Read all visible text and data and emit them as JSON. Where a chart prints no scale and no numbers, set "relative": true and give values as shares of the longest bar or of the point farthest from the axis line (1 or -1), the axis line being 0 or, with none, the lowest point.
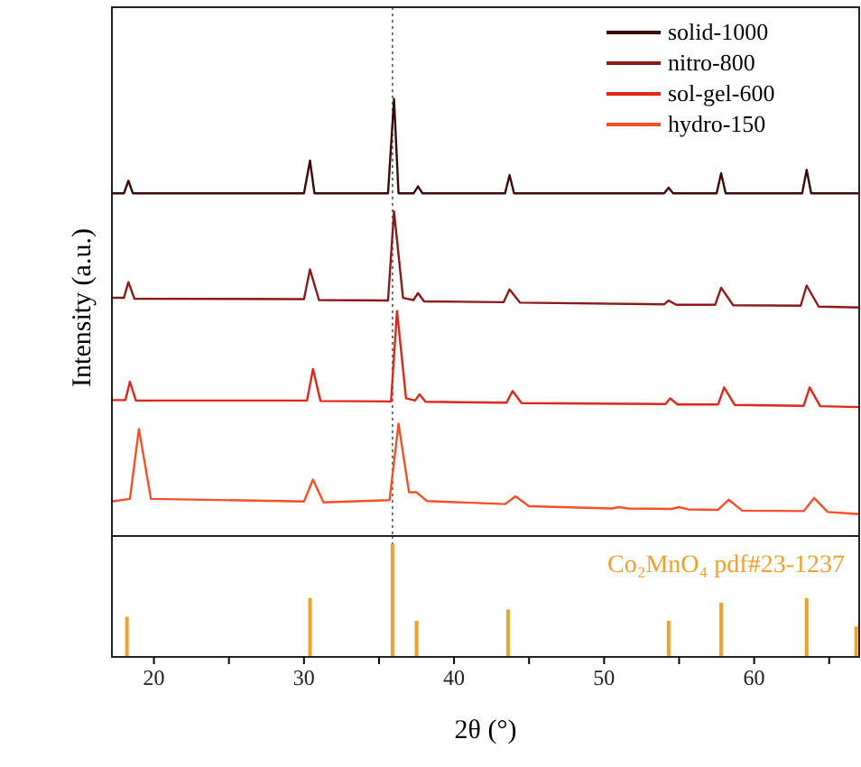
{
  "chart_data": [
    {
      "type": "line",
      "ylabel": "Intensity (a.u.)",
      "relative": true,
      "xlim": [
        17.2,
        67
      ],
      "tick_labels": false,
      "legend": "top right",
      "ref_lines": [
        {
          "axis": "x",
          "value": 35.9,
          "line_style": "dotted",
          "color": "#555555"
        }
      ],
      "series": [
        {
          "name": "solid-1000",
          "color": "#3a0a0a",
          "x": [
            17.2,
            18.0,
            18.3,
            18.6,
            30.0,
            30.4,
            30.7,
            35.6,
            36.0,
            36.3,
            37.3,
            37.6,
            37.9,
            43.4,
            43.7,
            44.0,
            54.0,
            54.3,
            54.6,
            57.5,
            57.8,
            58.1,
            63.2,
            63.5,
            63.8,
            67
          ],
          "values": [
            0.784,
            0.784,
            0.813,
            0.784,
            0.784,
            0.859,
            0.784,
            0.784,
            1,
            0.784,
            0.784,
            0.8,
            0.784,
            0.784,
            0.826,
            0.784,
            0.784,
            0.797,
            0.784,
            0.784,
            0.83,
            0.784,
            0.784,
            0.838,
            0.784,
            0.784
          ]
        },
        {
          "name": "nitro-800",
          "color": "#8b1a1a",
          "x": [
            17.2,
            18.0,
            18.3,
            18.7,
            30.0,
            30.4,
            31.0,
            35.6,
            36.0,
            36.6,
            37.3,
            37.6,
            38.0,
            43.3,
            43.7,
            44.4,
            54.0,
            54.3,
            54.8,
            57.4,
            57.8,
            58.6,
            63.1,
            63.5,
            64.3,
            67
          ],
          "values": [
            0.545,
            0.545,
            0.581,
            0.543,
            0.542,
            0.61,
            0.54,
            0.539,
            0.743,
            0.545,
            0.54,
            0.556,
            0.537,
            0.535,
            0.564,
            0.534,
            0.53,
            0.539,
            0.529,
            0.529,
            0.568,
            0.528,
            0.527,
            0.573,
            0.525,
            0.523
          ]
        },
        {
          "name": "sol-gel-600",
          "color": "#e0261b",
          "x": [
            17.2,
            18.1,
            18.4,
            18.8,
            30.2,
            30.6,
            31.1,
            35.8,
            36.2,
            36.8,
            37.4,
            37.7,
            38.1,
            43.5,
            43.9,
            44.5,
            54.1,
            54.4,
            54.9,
            57.6,
            58.0,
            58.7,
            63.3,
            63.7,
            64.4,
            67
          ],
          "values": [
            0.311,
            0.311,
            0.353,
            0.31,
            0.31,
            0.382,
            0.309,
            0.308,
            0.515,
            0.315,
            0.31,
            0.324,
            0.307,
            0.305,
            0.332,
            0.304,
            0.302,
            0.315,
            0.301,
            0.301,
            0.34,
            0.3,
            0.298,
            0.34,
            0.297,
            0.295
          ]
        },
        {
          "name": "hydro-150",
          "color": "#f5502a",
          "x": [
            17.2,
            18.4,
            19.0,
            19.8,
            30.0,
            30.6,
            31.3,
            35.7,
            36.3,
            37.0,
            37.5,
            38.2,
            43.4,
            44.1,
            45.0,
            50.5,
            51.0,
            51.6,
            54.5,
            55.0,
            55.6,
            57.6,
            58.3,
            59.2,
            63.3,
            64.0,
            64.9,
            67
          ],
          "values": [
            0.079,
            0.085,
            0.245,
            0.085,
            0.079,
            0.129,
            0.077,
            0.082,
            0.257,
            0.1,
            0.1,
            0.08,
            0.073,
            0.091,
            0.068,
            0.063,
            0.066,
            0.063,
            0.062,
            0.066,
            0.061,
            0.06,
            0.083,
            0.058,
            0.057,
            0.087,
            0.055,
            0.05
          ]
        }
      ]
    },
    {
      "type": "bar",
      "xlabel": "2θ (°)",
      "relative": true,
      "xlim": [
        17.2,
        67
      ],
      "xticks": [
        20,
        {
          "value": 25,
          "label": null
        },
        30,
        {
          "value": 35,
          "label": null
        },
        40,
        {
          "value": 45,
          "label": null
        },
        50,
        {
          "value": 55,
          "label": null
        },
        60,
        {
          "value": 65,
          "label": null
        }
      ],
      "tick_labels": "x",
      "annotations": [
        "Co₂MnO₄ pdf#23-1237"
      ],
      "ref_lines": [
        {
          "axis": "x",
          "value": 35.9,
          "line_style": "dotted",
          "color": "#555555"
        }
      ],
      "series": [
        {
          "color": "#f0a030",
          "x": [
            18.2,
            30.4,
            35.9,
            37.5,
            43.6,
            54.3,
            57.8,
            63.5,
            66.8
          ],
          "values": [
            0.355,
            0.52,
            1,
            0.32,
            0.42,
            0.32,
            0.48,
            0.52,
            0.27
          ]
        }
      ]
    }
  ]
}
